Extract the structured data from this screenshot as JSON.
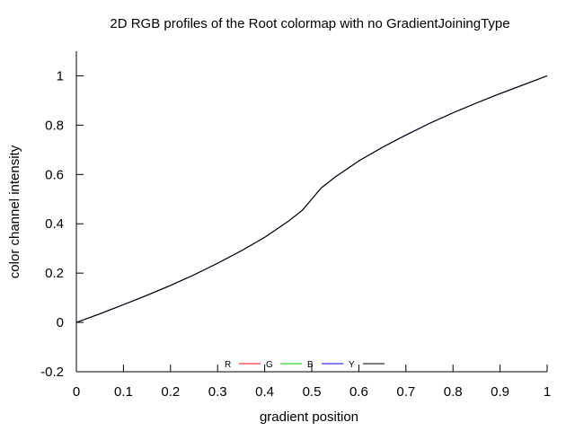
{
  "chart_data": {
    "type": "line",
    "title": "2D RGB profiles of the Root colormap with no GradientJoiningType",
    "xlabel": "gradient position",
    "ylabel": "color channel intensity",
    "xlim": [
      0,
      1
    ],
    "ylim": [
      -0.2,
      1.1
    ],
    "xticks": [
      0,
      0.1,
      0.2,
      0.3,
      0.4,
      0.5,
      0.6,
      0.7,
      0.8,
      0.9,
      1
    ],
    "xtick_labels": [
      "0",
      "0.1",
      "0.2",
      "0.3",
      "0.4",
      "0.5",
      "0.6",
      "0.7",
      "0.8",
      "0.9",
      "1"
    ],
    "yticks": [
      -0.2,
      0,
      0.2,
      0.4,
      0.6,
      0.8,
      1
    ],
    "ytick_labels": [
      "-0.2",
      "0",
      "0.2",
      "0.4",
      "0.6",
      "0.8",
      "1"
    ],
    "grid": false,
    "legend_position": "bottom-center",
    "series": [
      {
        "name": "R",
        "color": "#ff0000",
        "x": [
          0,
          0.05,
          0.1,
          0.15,
          0.2,
          0.25,
          0.3,
          0.35,
          0.4,
          0.45,
          0.48,
          0.5,
          0.52,
          0.55,
          0.6,
          0.65,
          0.7,
          0.75,
          0.8,
          0.85,
          0.9,
          0.95,
          1
        ],
        "y": [
          0,
          0.035,
          0.072,
          0.11,
          0.15,
          0.193,
          0.24,
          0.29,
          0.345,
          0.41,
          0.455,
          0.5,
          0.545,
          0.59,
          0.655,
          0.71,
          0.76,
          0.807,
          0.85,
          0.89,
          0.928,
          0.964,
          1
        ]
      },
      {
        "name": "G",
        "color": "#00cc00",
        "x": [
          0,
          0.05,
          0.1,
          0.15,
          0.2,
          0.25,
          0.3,
          0.35,
          0.4,
          0.45,
          0.48,
          0.5,
          0.52,
          0.55,
          0.6,
          0.65,
          0.7,
          0.75,
          0.8,
          0.85,
          0.9,
          0.95,
          1
        ],
        "y": [
          0,
          0.035,
          0.072,
          0.11,
          0.15,
          0.193,
          0.24,
          0.29,
          0.345,
          0.41,
          0.455,
          0.5,
          0.545,
          0.59,
          0.655,
          0.71,
          0.76,
          0.807,
          0.85,
          0.89,
          0.928,
          0.964,
          1
        ]
      },
      {
        "name": "B",
        "color": "#0000ff",
        "x": [
          0,
          0.05,
          0.1,
          0.15,
          0.2,
          0.25,
          0.3,
          0.35,
          0.4,
          0.45,
          0.48,
          0.5,
          0.52,
          0.55,
          0.6,
          0.65,
          0.7,
          0.75,
          0.8,
          0.85,
          0.9,
          0.95,
          1
        ],
        "y": [
          0,
          0.035,
          0.072,
          0.11,
          0.15,
          0.193,
          0.24,
          0.29,
          0.345,
          0.41,
          0.455,
          0.5,
          0.545,
          0.59,
          0.655,
          0.71,
          0.76,
          0.807,
          0.85,
          0.89,
          0.928,
          0.964,
          1
        ]
      },
      {
        "name": "Y",
        "color": "#000000",
        "x": [
          0,
          0.05,
          0.1,
          0.15,
          0.2,
          0.25,
          0.3,
          0.35,
          0.4,
          0.45,
          0.48,
          0.5,
          0.52,
          0.55,
          0.6,
          0.65,
          0.7,
          0.75,
          0.8,
          0.85,
          0.9,
          0.95,
          1
        ],
        "y": [
          0,
          0.035,
          0.072,
          0.11,
          0.15,
          0.193,
          0.24,
          0.29,
          0.345,
          0.41,
          0.455,
          0.5,
          0.545,
          0.59,
          0.655,
          0.71,
          0.76,
          0.807,
          0.85,
          0.89,
          0.928,
          0.964,
          1
        ]
      }
    ]
  }
}
